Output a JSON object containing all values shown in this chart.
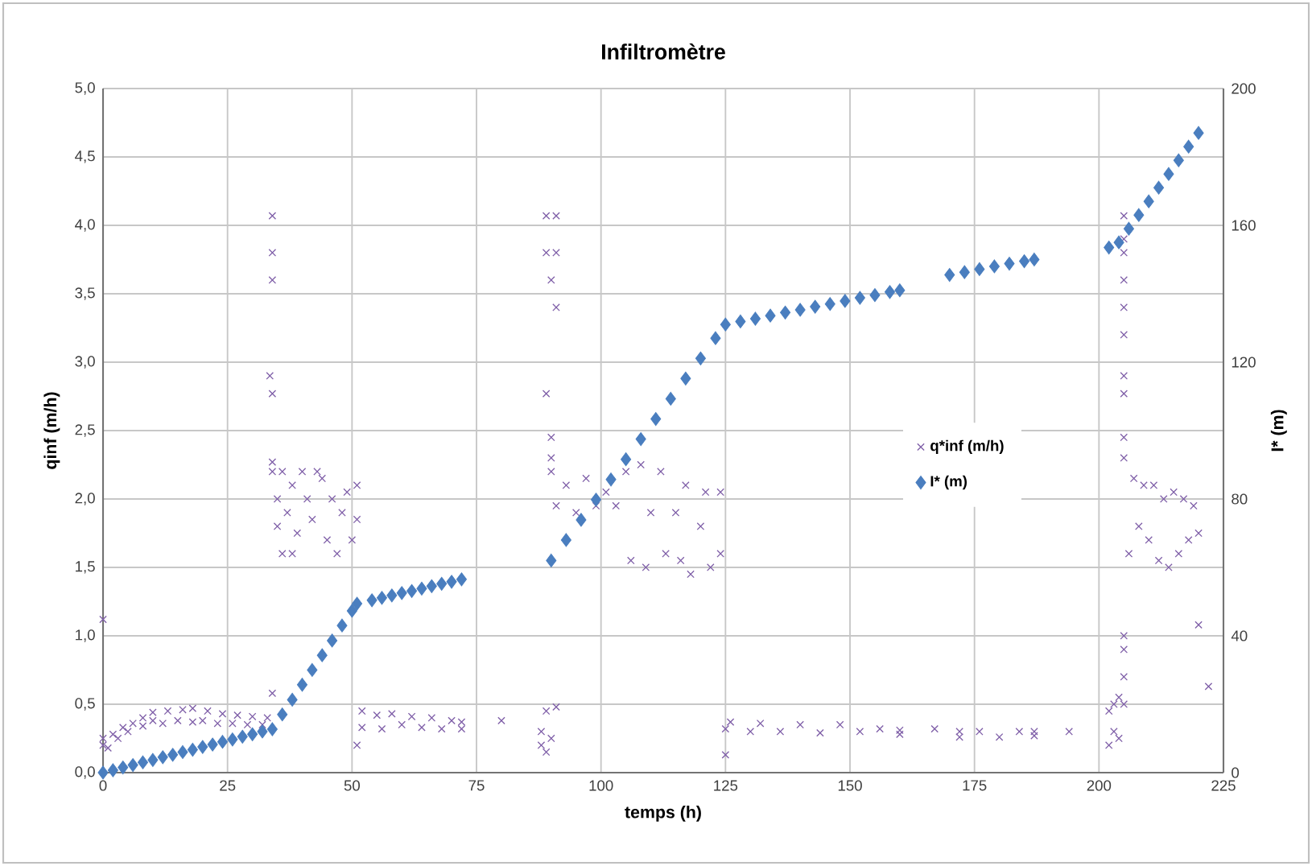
{
  "chart_data": {
    "type": "scatter",
    "title": "Infiltromètre",
    "xlabel": "temps (h)",
    "ylabel": "qinf (m/h)",
    "y2label": "I* (m)",
    "xlim": [
      0,
      225
    ],
    "xticks": [
      0,
      25,
      50,
      75,
      100,
      125,
      150,
      175,
      200,
      225
    ],
    "ylim": [
      0,
      5
    ],
    "yticks": [
      {
        "value": 0,
        "label": "0,0"
      },
      {
        "value": 0.5,
        "label": "0,5"
      },
      {
        "value": 1,
        "label": "1,0"
      },
      {
        "value": 1.5,
        "label": "1,5"
      },
      {
        "value": 2,
        "label": "2,0"
      },
      {
        "value": 2.5,
        "label": "2,5"
      },
      {
        "value": 3,
        "label": "3,0"
      },
      {
        "value": 3.5,
        "label": "3,5"
      },
      {
        "value": 4,
        "label": "4,0"
      },
      {
        "value": 4.5,
        "label": "4,5"
      },
      {
        "value": 5,
        "label": "5,0"
      }
    ],
    "y2lim": [
      0,
      200
    ],
    "y2ticks": [
      0,
      40,
      80,
      120,
      160,
      200
    ],
    "grid": true,
    "legend": "right",
    "series": [
      {
        "name": "q*inf (m/h)",
        "color": "#7f5fa8",
        "marker": "cross",
        "x": [
          0,
          0,
          1,
          2,
          3,
          4,
          5,
          6,
          8,
          8,
          10,
          10,
          12,
          13,
          15,
          16,
          18,
          18,
          20,
          21,
          23,
          24,
          26,
          27,
          29,
          30,
          32,
          33,
          0,
          34,
          34,
          34,
          33.5,
          34,
          34,
          34,
          34,
          35,
          35,
          36,
          36,
          37,
          38,
          38,
          39,
          40,
          41,
          42,
          43,
          44,
          45,
          46,
          47,
          48,
          49,
          50,
          51,
          51,
          51,
          52,
          52,
          55,
          56,
          58,
          60,
          62,
          64,
          66,
          68,
          70,
          72,
          72,
          80,
          88,
          88,
          89,
          89,
          90,
          91,
          89,
          91,
          89,
          91,
          90,
          91,
          89,
          90,
          90,
          90,
          91,
          93,
          95,
          97,
          99,
          101,
          103,
          105,
          106,
          108,
          109,
          110,
          112,
          113,
          115,
          116,
          117,
          118,
          120,
          121,
          122,
          124,
          124,
          125,
          125,
          126,
          130,
          132,
          136,
          140,
          144,
          148,
          152,
          156,
          160,
          160,
          167,
          172,
          172,
          176,
          180,
          184,
          187,
          187,
          194,
          202,
          202,
          203,
          203,
          204,
          204,
          205,
          205,
          205,
          205,
          205,
          205,
          205,
          205,
          205,
          205,
          205,
          205,
          205,
          205,
          206,
          207,
          208,
          209,
          210,
          211,
          212,
          213,
          214,
          215,
          216,
          217,
          218,
          219,
          220,
          220,
          222
        ],
        "values": [
          0.2,
          0.25,
          0.18,
          0.28,
          0.25,
          0.33,
          0.3,
          0.36,
          0.34,
          0.4,
          0.38,
          0.44,
          0.36,
          0.45,
          0.38,
          0.46,
          0.37,
          0.47,
          0.38,
          0.45,
          0.36,
          0.43,
          0.36,
          0.42,
          0.35,
          0.41,
          0.35,
          0.4,
          1.12,
          4.07,
          3.8,
          3.6,
          2.9,
          2.77,
          2.27,
          0.58,
          2.2,
          2.0,
          1.8,
          2.2,
          1.6,
          1.9,
          2.1,
          1.6,
          1.75,
          2.2,
          2.0,
          1.85,
          2.2,
          2.15,
          1.7,
          2.0,
          1.6,
          1.9,
          2.05,
          1.7,
          2.1,
          1.85,
          0.2,
          0.45,
          0.33,
          0.42,
          0.32,
          0.43,
          0.35,
          0.41,
          0.33,
          0.4,
          0.32,
          0.38,
          0.32,
          0.37,
          0.38,
          0.3,
          0.2,
          0.15,
          0.45,
          0.25,
          0.48,
          4.07,
          4.07,
          3.8,
          3.8,
          3.6,
          3.4,
          2.77,
          2.45,
          2.3,
          2.2,
          1.95,
          2.1,
          1.9,
          2.15,
          1.95,
          2.05,
          1.95,
          2.2,
          1.55,
          2.25,
          1.5,
          1.9,
          2.2,
          1.6,
          1.9,
          1.55,
          2.1,
          1.45,
          1.8,
          2.05,
          1.5,
          2.05,
          1.6,
          0.13,
          0.32,
          0.37,
          0.3,
          0.36,
          0.3,
          0.35,
          0.29,
          0.35,
          0.3,
          0.32,
          0.28,
          0.31,
          0.32,
          0.3,
          0.26,
          0.3,
          0.26,
          0.3,
          0.27,
          0.3,
          0.3,
          0.2,
          0.45,
          0.5,
          0.3,
          0.25,
          0.55,
          4.07,
          3.9,
          3.8,
          3.6,
          3.4,
          3.2,
          2.9,
          2.77,
          2.45,
          1.0,
          0.9,
          0.7,
          0.5,
          2.3,
          1.6,
          2.15,
          1.8,
          2.1,
          1.7,
          2.1,
          1.55,
          2.0,
          1.5,
          2.05,
          1.6,
          2.0,
          1.7,
          1.95,
          1.75,
          1.08,
          0.63
        ]
      },
      {
        "name": "I* (m)",
        "color": "#4a7ebf",
        "marker": "diamond",
        "axis": "y2",
        "x": [
          0,
          2,
          4,
          6,
          8,
          10,
          12,
          14,
          16,
          18,
          20,
          22,
          24,
          26,
          28,
          30,
          32,
          34,
          36,
          38,
          40,
          42,
          44,
          46,
          48,
          50,
          51,
          54,
          56,
          58,
          60,
          62,
          64,
          66,
          68,
          70,
          72,
          90,
          93,
          96,
          99,
          102,
          105,
          108,
          111,
          114,
          117,
          120,
          123,
          125,
          128,
          131,
          134,
          137,
          140,
          143,
          146,
          149,
          152,
          155,
          158,
          160,
          170,
          173,
          176,
          179,
          182,
          185,
          187,
          202,
          204,
          206,
          208,
          210,
          212,
          214,
          216,
          218,
          220
        ],
        "values": [
          0,
          0.7,
          1.5,
          2.2,
          3,
          3.7,
          4.5,
          5.2,
          6,
          6.7,
          7.5,
          8.2,
          9,
          9.7,
          10.5,
          11.2,
          12,
          12.7,
          17,
          21.3,
          25.7,
          30,
          34.3,
          38.6,
          43,
          47.3,
          49.4,
          50.4,
          51.1,
          51.8,
          52.5,
          53.1,
          53.8,
          54.5,
          55.2,
          55.8,
          56.5,
          62,
          68,
          73.9,
          79.8,
          85.7,
          91.6,
          97.5,
          103.4,
          109.3,
          115.2,
          121.1,
          127,
          131,
          131.9,
          132.7,
          133.6,
          134.5,
          135.3,
          136.2,
          137,
          137.9,
          138.8,
          139.6,
          140.5,
          141,
          145.5,
          146.3,
          147.2,
          148,
          148.8,
          149.5,
          150,
          153.5,
          155,
          159,
          163,
          167,
          171,
          175,
          179,
          183,
          187
        ]
      }
    ]
  }
}
